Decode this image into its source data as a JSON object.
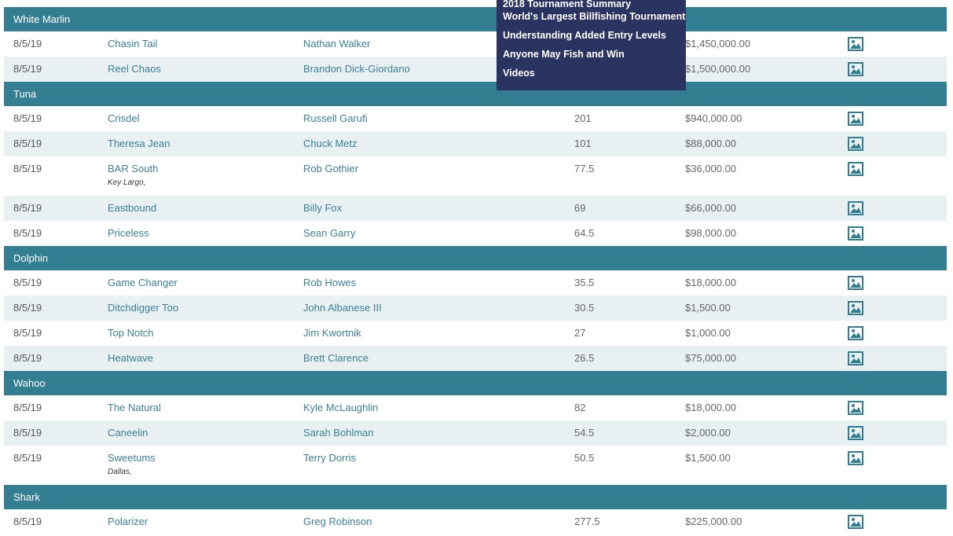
{
  "categories": [
    {
      "name": "White Marlin",
      "rows": [
        {
          "date": "8/5/19",
          "boat": "Chasin Tail",
          "angler": "Nathan Walker",
          "weight": "",
          "amount": "$1,450,000.00",
          "location": ""
        },
        {
          "date": "8/5/19",
          "boat": "Reel Chaos",
          "angler": "Brandon Dick-Giordano",
          "weight": "",
          "amount": "$1,500,000.00",
          "location": ""
        }
      ]
    },
    {
      "name": "Tuna",
      "rows": [
        {
          "date": "8/5/19",
          "boat": "Crisdel",
          "angler": "Russell Garufi",
          "weight": "201",
          "amount": "$940,000.00",
          "location": ""
        },
        {
          "date": "8/5/19",
          "boat": "Theresa Jean",
          "angler": "Chuck Metz",
          "weight": "101",
          "amount": "$88,000.00",
          "location": ""
        },
        {
          "date": "8/5/19",
          "boat": "BAR South",
          "angler": "Rob Gothier",
          "weight": "77.5",
          "amount": "$36,000.00",
          "location": "Key Largo,"
        },
        {
          "date": "8/5/19",
          "boat": "Eastbound",
          "angler": "Billy Fox",
          "weight": "69",
          "amount": "$66,000.00",
          "location": ""
        },
        {
          "date": "8/5/19",
          "boat": "Priceless",
          "angler": "Sean Garry",
          "weight": "64.5",
          "amount": "$98,000.00",
          "location": ""
        }
      ]
    },
    {
      "name": "Dolphin",
      "rows": [
        {
          "date": "8/5/19",
          "boat": "Game Changer",
          "angler": "Rob Howes",
          "weight": "35.5",
          "amount": "$18,000.00",
          "location": ""
        },
        {
          "date": "8/5/19",
          "boat": "Ditchdigger Too",
          "angler": "John Albanese III",
          "weight": "30.5",
          "amount": "$1,500.00",
          "location": ""
        },
        {
          "date": "8/5/19",
          "boat": "Top Notch",
          "angler": "Jim Kwortnik",
          "weight": "27",
          "amount": "$1,000.00",
          "location": ""
        },
        {
          "date": "8/5/19",
          "boat": "Heatwave",
          "angler": "Brett Clarence",
          "weight": "26.5",
          "amount": "$75,000.00",
          "location": ""
        }
      ]
    },
    {
      "name": "Wahoo",
      "rows": [
        {
          "date": "8/5/19",
          "boat": "The Natural",
          "angler": "Kyle McLaughlin",
          "weight": "82",
          "amount": "$18,000.00",
          "location": ""
        },
        {
          "date": "8/5/19",
          "boat": "Caneelin",
          "angler": "Sarah Bohlman",
          "weight": "54.5",
          "amount": "$2,000.00",
          "location": ""
        },
        {
          "date": "8/5/19",
          "boat": "Sweetums",
          "angler": "Terry Dorris",
          "weight": "50.5",
          "amount": "$1,500.00",
          "location": "Dallas,"
        }
      ]
    },
    {
      "name": "Shark",
      "rows": [
        {
          "date": "8/5/19",
          "boat": "Polarizer",
          "angler": "Greg Robinson",
          "weight": "277.5",
          "amount": "$225,000.00",
          "location": ""
        }
      ]
    }
  ],
  "dropdown_menu": {
    "items": [
      "2018 Tournament Summary",
      "World's Largest Billfishing Tournament",
      "Understanding Added Entry Levels",
      "Anyone May Fish and Win",
      "Videos"
    ]
  },
  "icons": {
    "photo": "image-icon"
  },
  "colors": {
    "category_bar": "#337e91",
    "alt_row": "#e9f0f2",
    "link_text": "#3c7f92",
    "menu_bg": "#2b3460",
    "icon": "#2f7d8f"
  }
}
